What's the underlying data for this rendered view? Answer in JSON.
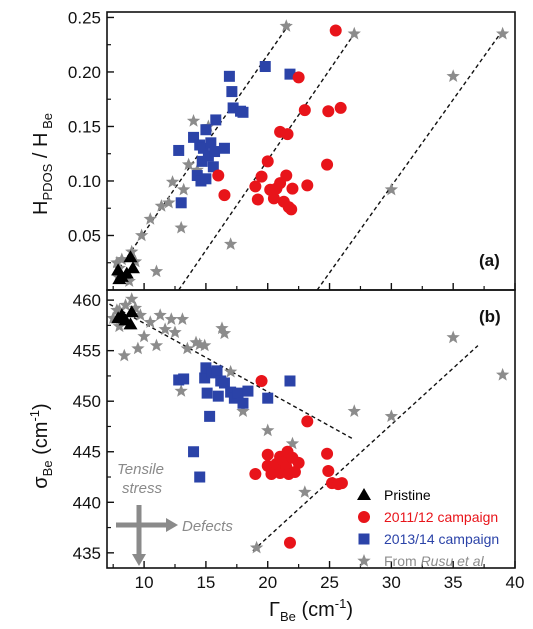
{
  "colors": {
    "pristine": "#000000",
    "campaign_2011": "#e8141a",
    "campaign_2013": "#2b43a8",
    "rusu": "#8c8c8c",
    "annotation": "#8a8a8a"
  },
  "legend": {
    "pristine": "Pristine",
    "campaign_2011": "2011/12 campaign",
    "campaign_2013": "2013/14 campaign",
    "rusu_prefix": "From ",
    "rusu_name": "Rusu et al"
  },
  "annotations": {
    "tensile_line1": "Tensile",
    "tensile_line2": "stress",
    "defects": "Defects"
  },
  "chart_data": [
    {
      "type": "scatter",
      "panel_label": "(a)",
      "ylabel": "H_PDOS / H_Be",
      "ylabel_parts": {
        "main1": "H",
        "sub1": "PDOS",
        "mid": " / H",
        "sub2": " Be"
      },
      "xlim": [
        7,
        40
      ],
      "ylim": [
        0.0,
        0.255
      ],
      "yticks": [
        "0.05",
        "0.10",
        "0.15",
        "0.20",
        "0.25"
      ],
      "ytick_values": [
        0.05,
        0.1,
        0.15,
        0.2,
        0.25
      ],
      "series": [
        {
          "name": "Pristine",
          "marker": "triangle",
          "points": [
            [
              7.9,
              0.018
            ],
            [
              8.2,
              0.012
            ],
            [
              8.6,
              0.015
            ],
            [
              8.9,
              0.03
            ],
            [
              9.1,
              0.02
            ],
            [
              8.0,
              0.01
            ]
          ]
        },
        {
          "name": "2011/12 campaign",
          "marker": "circle",
          "points": [
            [
              16.0,
              0.105
            ],
            [
              16.5,
              0.087
            ],
            [
              19.0,
              0.095
            ],
            [
              19.2,
              0.083
            ],
            [
              19.5,
              0.104
            ],
            [
              20.0,
              0.118
            ],
            [
              20.2,
              0.092
            ],
            [
              20.5,
              0.084
            ],
            [
              20.7,
              0.093
            ],
            [
              21.0,
              0.098
            ],
            [
              21.0,
              0.145
            ],
            [
              21.3,
              0.081
            ],
            [
              21.5,
              0.105
            ],
            [
              21.6,
              0.143
            ],
            [
              21.7,
              0.076
            ],
            [
              21.9,
              0.074
            ],
            [
              22.0,
              0.093
            ],
            [
              22.5,
              0.195
            ],
            [
              23.0,
              0.165
            ],
            [
              23.2,
              0.096
            ],
            [
              24.8,
              0.115
            ],
            [
              24.9,
              0.164
            ],
            [
              25.5,
              0.238
            ],
            [
              25.9,
              0.167
            ]
          ]
        },
        {
          "name": "2013/14 campaign",
          "marker": "square",
          "points": [
            [
              12.8,
              0.128
            ],
            [
              13.0,
              0.08
            ],
            [
              14.0,
              0.14
            ],
            [
              14.3,
              0.105
            ],
            [
              14.5,
              0.133
            ],
            [
              14.6,
              0.1
            ],
            [
              14.7,
              0.118
            ],
            [
              14.8,
              0.13
            ],
            [
              15.0,
              0.102
            ],
            [
              15.0,
              0.147
            ],
            [
              15.2,
              0.123
            ],
            [
              15.4,
              0.135
            ],
            [
              15.6,
              0.113
            ],
            [
              15.7,
              0.127
            ],
            [
              15.8,
              0.156
            ],
            [
              16.5,
              0.13
            ],
            [
              16.9,
              0.196
            ],
            [
              17.1,
              0.182
            ],
            [
              17.2,
              0.167
            ],
            [
              17.8,
              0.164
            ],
            [
              18.0,
              0.163
            ],
            [
              19.8,
              0.205
            ],
            [
              21.8,
              0.198
            ]
          ]
        },
        {
          "name": "From Rusu et al",
          "marker": "star",
          "points": [
            [
              7.8,
              0.025
            ],
            [
              7.9,
              0.012
            ],
            [
              8.0,
              0.02
            ],
            [
              8.2,
              0.028
            ],
            [
              8.5,
              0.011
            ],
            [
              8.8,
              0.008
            ],
            [
              9.0,
              0.035
            ],
            [
              9.3,
              0.026
            ],
            [
              9.8,
              0.05
            ],
            [
              10.5,
              0.065
            ],
            [
              11.0,
              0.017
            ],
            [
              11.4,
              0.077
            ],
            [
              12.0,
              0.08
            ],
            [
              12.3,
              0.099
            ],
            [
              13.0,
              0.057
            ],
            [
              13.2,
              0.092
            ],
            [
              13.6,
              0.115
            ],
            [
              14.0,
              0.155
            ],
            [
              14.3,
              0.11
            ],
            [
              15.2,
              0.15
            ],
            [
              17.0,
              0.042
            ],
            [
              21.5,
              0.242
            ],
            [
              27.0,
              0.235
            ],
            [
              30.0,
              0.092
            ],
            [
              35.0,
              0.196
            ],
            [
              39.0,
              0.235
            ]
          ]
        }
      ],
      "trend_lines": [
        [
          [
            8.0,
            0.02
          ],
          [
            21.8,
            0.245
          ]
        ],
        [
          [
            12.8,
            0.0
          ],
          [
            27.0,
            0.235
          ]
        ],
        [
          [
            24.0,
            0.0
          ],
          [
            38.8,
            0.235
          ]
        ]
      ]
    },
    {
      "type": "scatter",
      "panel_label": "(b)",
      "ylabel": "σ_Be (cm⁻¹)",
      "ylabel_parts": {
        "main": "σ",
        "sub": "Be",
        "unit_open": " (cm",
        "unit_sup": "-1",
        "unit_close": ")"
      },
      "xlabel": "Γ_Be (cm⁻¹)",
      "xlabel_parts": {
        "main": "Γ",
        "sub": "Be",
        "unit_open": " (cm",
        "unit_sup": "-1",
        "unit_close": ")"
      },
      "xlim": [
        7,
        40
      ],
      "ylim": [
        433.5,
        461
      ],
      "xticks": [
        "10",
        "15",
        "20",
        "25",
        "30",
        "35",
        "40"
      ],
      "xtick_values": [
        10,
        15,
        20,
        25,
        30,
        35,
        40
      ],
      "yticks": [
        "435",
        "440",
        "445",
        "450",
        "455",
        "460"
      ],
      "ytick_values": [
        435,
        440,
        445,
        450,
        455,
        460
      ],
      "series": [
        {
          "name": "Pristine",
          "marker": "triangle",
          "points": [
            [
              8.2,
              458.5
            ],
            [
              8.5,
              458.0
            ],
            [
              8.9,
              457.6
            ],
            [
              9.0,
              458.8
            ],
            [
              7.9,
              458.2
            ]
          ]
        },
        {
          "name": "2011/12 campaign",
          "marker": "circle",
          "points": [
            [
              19.0,
              442.8
            ],
            [
              19.5,
              452.0
            ],
            [
              20.0,
              444.7
            ],
            [
              20.0,
              443.6
            ],
            [
              20.3,
              442.8
            ],
            [
              20.7,
              443.8
            ],
            [
              21.0,
              444.5
            ],
            [
              21.0,
              442.9
            ],
            [
              21.3,
              444.0
            ],
            [
              21.5,
              443.5
            ],
            [
              21.6,
              445.0
            ],
            [
              21.7,
              442.8
            ],
            [
              21.8,
              436.0
            ],
            [
              22.0,
              444.4
            ],
            [
              22.2,
              443.0
            ],
            [
              22.5,
              443.9
            ],
            [
              23.2,
              448.0
            ],
            [
              24.8,
              444.8
            ],
            [
              24.9,
              443.1
            ],
            [
              25.2,
              441.9
            ],
            [
              25.7,
              441.8
            ],
            [
              26.0,
              441.9
            ]
          ]
        },
        {
          "name": "2013/14 campaign",
          "marker": "square",
          "points": [
            [
              14.0,
              445.0
            ],
            [
              14.5,
              442.5
            ],
            [
              14.9,
              452.3
            ],
            [
              15.0,
              453.3
            ],
            [
              15.1,
              450.8
            ],
            [
              15.3,
              448.5
            ],
            [
              15.5,
              452.8
            ],
            [
              15.9,
              453.0
            ],
            [
              16.2,
              452.0
            ],
            [
              16.0,
              450.5
            ],
            [
              16.5,
              451.8
            ],
            [
              17.0,
              450.9
            ],
            [
              17.3,
              450.3
            ],
            [
              17.6,
              450.8
            ],
            [
              18.0,
              449.8
            ],
            [
              18.4,
              451.0
            ],
            [
              20.0,
              450.3
            ],
            [
              21.8,
              452.0
            ],
            [
              12.8,
              452.1
            ],
            [
              13.2,
              452.2
            ]
          ]
        },
        {
          "name": "From Rusu et al",
          "marker": "star",
          "points": [
            [
              7.5,
              458.2
            ],
            [
              7.8,
              459.0
            ],
            [
              8.0,
              459.0
            ],
            [
              8.0,
              457.4
            ],
            [
              8.4,
              454.5
            ],
            [
              8.5,
              459.5
            ],
            [
              9.0,
              460.1
            ],
            [
              9.3,
              459.2
            ],
            [
              9.5,
              455.2
            ],
            [
              9.7,
              458.5
            ],
            [
              10.0,
              456.4
            ],
            [
              10.5,
              457.8
            ],
            [
              11.0,
              455.5
            ],
            [
              11.3,
              458.5
            ],
            [
              11.7,
              457.1
            ],
            [
              12.2,
              458.1
            ],
            [
              12.5,
              456.8
            ],
            [
              13.0,
              451.0
            ],
            [
              13.1,
              458.1
            ],
            [
              13.5,
              455.2
            ],
            [
              14.2,
              455.8
            ],
            [
              14.5,
              455.6
            ],
            [
              14.9,
              455.5
            ],
            [
              15.3,
              452.8
            ],
            [
              16.3,
              457.2
            ],
            [
              16.5,
              456.7
            ],
            [
              17.0,
              452.9
            ],
            [
              18.0,
              449.0
            ],
            [
              20.0,
              447.1
            ],
            [
              22.0,
              445.8
            ],
            [
              23.0,
              441.0
            ],
            [
              27.0,
              449.0
            ],
            [
              30.0,
              448.5
            ],
            [
              35.0,
              456.3
            ],
            [
              39.0,
              452.6
            ],
            [
              19.1,
              435.5
            ]
          ]
        }
      ],
      "trend_lines": [
        [
          [
            7.2,
            459.6
          ],
          [
            27.0,
            446.2
          ]
        ],
        [
          [
            18.8,
            435.2
          ],
          [
            37.0,
            455.5
          ]
        ]
      ]
    }
  ]
}
